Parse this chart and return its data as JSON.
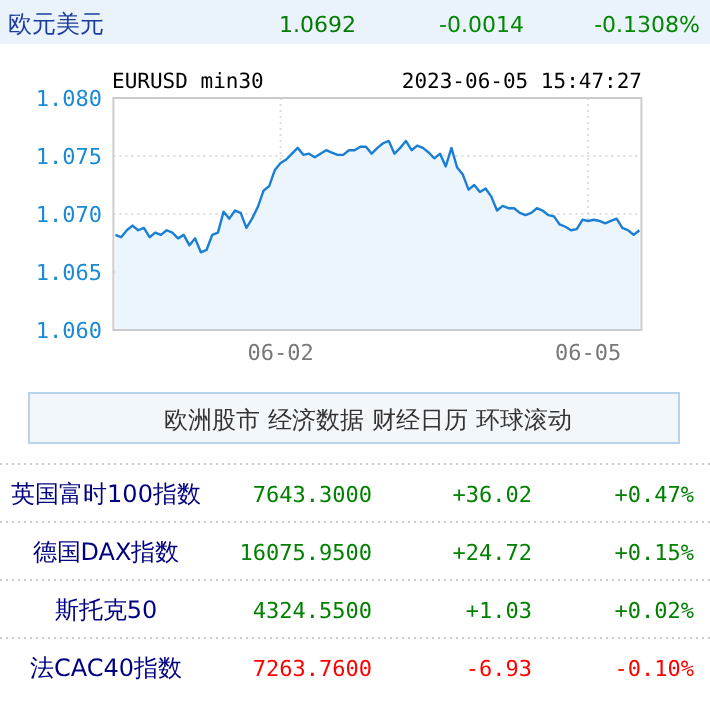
{
  "chart_data": [
    {
      "type": "area",
      "title": "欧元美元",
      "subtitle": "EURUSD min30",
      "annotations": [
        "1.0692",
        "-0.0014",
        "-0.1308%",
        "2023-06-05 15:47:27"
      ],
      "categories": [
        null,
        null,
        null,
        null,
        null,
        null,
        null,
        null,
        null,
        null,
        null,
        null,
        null,
        null,
        null,
        null,
        null,
        null,
        null,
        null,
        null,
        null,
        null,
        null,
        null,
        null,
        null,
        null,
        null,
        "06-02",
        null,
        null,
        null,
        null,
        null,
        null,
        null,
        null,
        null,
        null,
        null,
        null,
        null,
        null,
        null,
        null,
        null,
        null,
        null,
        null,
        null,
        null,
        null,
        null,
        null,
        null,
        null,
        null,
        null,
        null,
        null,
        null,
        null,
        null,
        null,
        null,
        null,
        null,
        null,
        null,
        null,
        null,
        null,
        null,
        null,
        null,
        null,
        null,
        null,
        null,
        null,
        null,
        null,
        "06-05",
        null,
        null,
        null,
        null,
        null,
        null,
        null,
        null,
        null
      ],
      "series": [
        {
          "color": "#1a7fd4",
          "values": [
            1.0682,
            1.068,
            1.0686,
            1.069,
            1.0686,
            1.0688,
            1.068,
            1.0684,
            1.0682,
            1.0686,
            1.0684,
            1.0679,
            1.0682,
            1.0673,
            1.0679,
            1.0667,
            1.0669,
            1.0682,
            1.0684,
            1.0702,
            1.0696,
            1.0703,
            1.0701,
            1.0688,
            1.0696,
            1.0706,
            1.072,
            1.0724,
            1.0738,
            1.0744,
            1.0747,
            1.0752,
            1.0757,
            1.0751,
            1.0752,
            1.0749,
            1.0752,
            1.0755,
            1.0753,
            1.0751,
            1.0751,
            1.0755,
            1.0755,
            1.0758,
            1.0758,
            1.0752,
            1.0757,
            1.0761,
            1.0763,
            1.0752,
            1.0757,
            1.0763,
            1.0755,
            1.0759,
            1.0757,
            1.0753,
            1.0748,
            1.0752,
            1.0741,
            1.0757,
            1.074,
            1.0734,
            1.0721,
            1.0725,
            1.0719,
            1.0722,
            1.0715,
            1.0703,
            1.0707,
            1.0705,
            1.0705,
            1.0701,
            1.0699,
            1.0701,
            1.0705,
            1.0703,
            1.0699,
            1.0698,
            1.0691,
            1.0689,
            1.0686,
            1.0687,
            1.0695,
            1.0694,
            1.0695,
            1.0694,
            1.0692,
            1.0694,
            1.0696,
            1.0688,
            1.0686,
            1.0682,
            1.0686
          ]
        }
      ],
      "ylim": [
        1.06,
        1.08
      ],
      "yticks": [
        {
          "value": 1.06,
          "label": "1.060"
        },
        {
          "value": 1.065,
          "label": "1.065"
        },
        {
          "value": 1.07,
          "label": "1.070"
        },
        {
          "value": 1.075,
          "label": "1.075"
        },
        {
          "value": 1.08,
          "label": "1.080"
        }
      ],
      "grid": true
    },
    {
      "type": "other",
      "annotations": [
        "欧洲股市",
        "经济数据",
        "财经日历",
        "环球滚动",
        "英国富时100指数",
        "7643.3000",
        "+36.02",
        "+0.47%",
        "德国DAX指数",
        "16075.9500",
        "+24.72",
        "+0.15%",
        "斯托克50",
        "4324.5500",
        "+1.03",
        "+0.02%",
        "法CAC40指数",
        "7263.7600",
        "-6.93",
        "-0.10%"
      ],
      "colors": [
        "#333333",
        "#333333",
        "#333333",
        "#333333",
        "#000080",
        "#008000",
        "#008000",
        "#008000",
        "#000080",
        "#008000",
        "#008000",
        "#008000",
        "#000080",
        "#008000",
        "#008000",
        "#008000",
        "#000080",
        "#ff0000",
        "#ff0000",
        "#ff0000"
      ]
    }
  ]
}
